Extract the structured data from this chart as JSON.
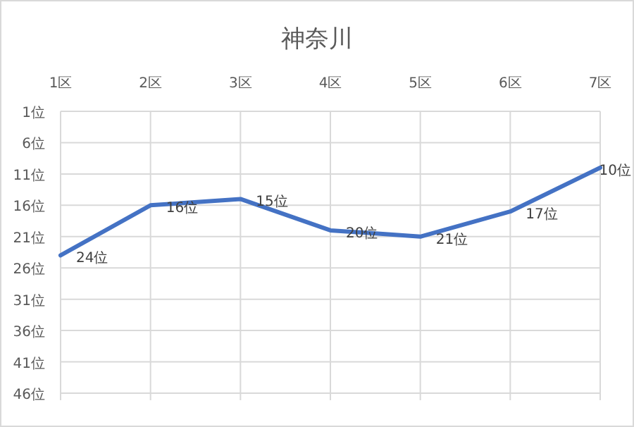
{
  "chart_data": {
    "type": "line",
    "title": "神奈川",
    "categories": [
      "1区",
      "2区",
      "3区",
      "4区",
      "5区",
      "6区",
      "7区"
    ],
    "series": [
      {
        "color": "#4472c4",
        "values": [
          24,
          16,
          15,
          20,
          21,
          17,
          10
        ],
        "value_labels": [
          "24位",
          "16位",
          "15位",
          "20位",
          "21位",
          "17位",
          "10位"
        ]
      }
    ],
    "ylim": [
      46,
      1
    ],
    "yticks": [
      {
        "value": 1,
        "label": "1位"
      },
      {
        "value": 6,
        "label": "6位"
      },
      {
        "value": 11,
        "label": "11位"
      },
      {
        "value": 16,
        "label": "16位"
      },
      {
        "value": 21,
        "label": "21位"
      },
      {
        "value": 26,
        "label": "26位"
      },
      {
        "value": 31,
        "label": "31位"
      },
      {
        "value": 36,
        "label": "36位"
      },
      {
        "value": 41,
        "label": "41位"
      },
      {
        "value": 46,
        "label": "46位"
      }
    ],
    "grid": true,
    "marker": "none",
    "line_style": "solid"
  }
}
